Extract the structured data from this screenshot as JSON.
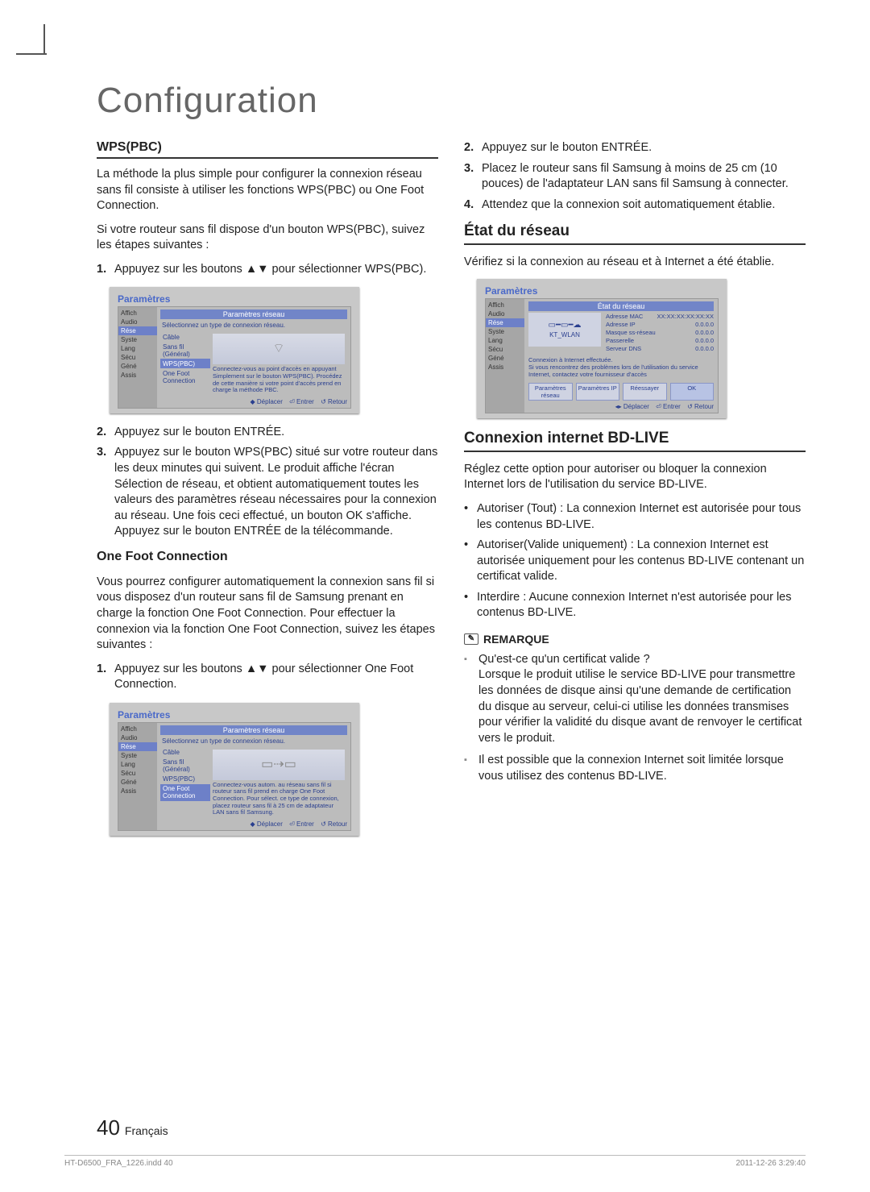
{
  "title": "Configuration",
  "left": {
    "wps_heading": "WPS(PBC)",
    "wps_intro": "La méthode la plus simple pour configurer la connexion réseau sans fil consiste à utiliser les fonctions WPS(PBC) ou One Foot Connection.",
    "wps_lead": "Si votre routeur sans fil dispose d'un bouton WPS(PBC), suivez les étapes suivantes :",
    "wps_step1": "Appuyez sur les boutons ▲▼ pour sélectionner WPS(PBC).",
    "wps_step2": "Appuyez sur le bouton ENTRÉE.",
    "wps_step3": "Appuyez sur le bouton WPS(PBC) situé sur votre routeur dans les deux minutes qui suivent. Le produit affiche l'écran Sélection de réseau, et obtient automatiquement toutes les valeurs des paramètres réseau nécessaires pour la connexion au réseau. Une fois ceci effectué, un bouton OK s'affiche. Appuyez sur le bouton ENTRÉE de la télécommande.",
    "ofc_heading": "One Foot Connection",
    "ofc_intro": "Vous pourrez configurer automatiquement la connexion sans fil si vous disposez d'un routeur sans fil de Samsung prenant en charge la fonction One Foot Connection. Pour effectuer la connexion via la fonction One Foot Connection, suivez les étapes suivantes :",
    "ofc_step1": "Appuyez sur les boutons ▲▼ pour sélectionner One Foot Connection."
  },
  "right": {
    "step2": "Appuyez sur le bouton ENTRÉE.",
    "step3": "Placez le routeur sans fil Samsung à moins de 25 cm (10 pouces) de l'adaptateur LAN sans fil Samsung à connecter.",
    "step4": "Attendez que la connexion soit automatiquement établie.",
    "etat_heading": "État du réseau",
    "etat_text": "Vérifiez si la connexion au réseau et à Internet a été établie.",
    "bd_heading": "Connexion internet BD-LIVE",
    "bd_text": "Réglez cette option pour autoriser ou bloquer la connexion Internet lors de l'utilisation du service BD-LIVE.",
    "bd_b1": "Autoriser (Tout) : La connexion Internet est autorisée pour tous les contenus BD-LIVE.",
    "bd_b2": "Autoriser(Valide uniquement) : La connexion Internet est autorisée uniquement pour les contenus BD-LIVE contenant un certificat valide.",
    "bd_b3": "Interdire : Aucune connexion Internet n'est autorisée pour les contenus BD-LIVE.",
    "remarque": "REMARQUE",
    "note1": "Qu'est-ce qu'un certificat valide ?\nLorsque le produit utilise le service BD-LIVE pour transmettre les données de disque ainsi qu'une demande de certification du disque au serveur, celui-ci utilise les données transmises pour vérifier la validité du disque avant de renvoyer le certificat vers le produit.",
    "note2": "Il est possible que la connexion Internet soit limitée lorsque vous utilisez des contenus BD-LIVE."
  },
  "shot_common": {
    "settings": "Paramètres",
    "header": "Paramètres réseau",
    "subtitle": "Sélectionnez un type de connexion réseau.",
    "side": [
      "Affich",
      "Audio",
      "Rése",
      "Syste",
      "Lang",
      "Sécu",
      "Géné",
      "Assis"
    ],
    "opts_cable": "Câble",
    "opts_sansfil": "Sans fil\n(Général)",
    "opts_wps": "WPS(PBC)",
    "opts_ofc": "One Foot\nConnection",
    "footer_move": "◆ Déplacer",
    "footer_enter": "⏎ Entrer",
    "footer_back": "↺ Retour"
  },
  "shot_wps_desc": "Connectez-vous au point d'accès en appuyant Simplement sur le bouton WPS(PBC). Procédez de cette manière si votre point d'accès prend en charge la méthode PBC.",
  "shot_ofc_desc": "Connectez-vous autom. au réseau sans fil si routeur sans fil prend en charge One Foot Connection. Pour sélect. ce type de connexion, placez routeur sans fil à 25 cm de adaptateur LAN sans fil Samsung.",
  "shot_status": {
    "title": "État du réseau",
    "net": "KT_WLAN",
    "mac_l": "Adresse MAC",
    "mac_v": "XX:XX:XX:XX:XX:XX",
    "ip_l": "Adresse IP",
    "ip_v": "0.0.0.0",
    "mask_l": "Masque ss-réseau",
    "mask_v": "0.0.0.0",
    "gw_l": "Passerelle",
    "gw_v": "0.0.0.0",
    "dns_l": "Serveur DNS",
    "dns_v": "0.0.0.0",
    "msg": "Connexion à Internet effectuée.\nSi vous rencontrez des problèmes lors de l'utilisation du service Internet, contactez votre fournisseur d'accès",
    "b1": "Paramètres réseau",
    "b2": "Paramètres IP",
    "b3": "Réessayer",
    "b4": "OK",
    "footer_lr": "◂▸ Déplacer"
  },
  "page_num": "40",
  "page_lang": "Français",
  "foot_left": "HT-D6500_FRA_1226.indd   40",
  "foot_right": "2011-12-26   3:29:40"
}
